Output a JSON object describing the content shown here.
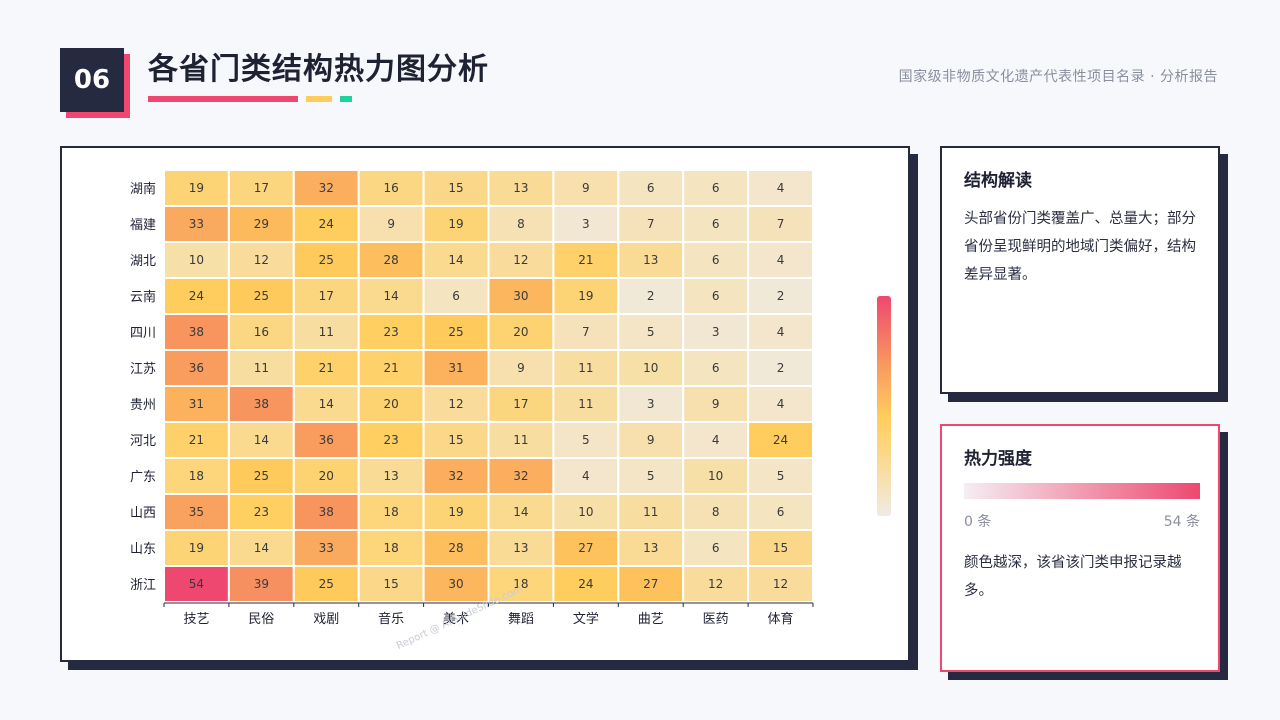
{
  "header": {
    "number": "06",
    "title": "各省门类结构热力图分析",
    "subtitle": "国家级非物质文化遗产代表性项目名录 · 分析报告"
  },
  "watermark": "Report @ AIGuideSlide.com",
  "panels": {
    "structure": {
      "title": "结构解读",
      "text": "头部省份门类覆盖广、总量大；部分省份呈现鲜明的地域门类偏好，结构差异显著。"
    },
    "intensity": {
      "title": "热力强度",
      "min_label": "0 条",
      "max_label": "54 条",
      "text": "颜色越深，该省该门类申报记录越多。"
    }
  },
  "colors": {
    "low": "#f0ebe6",
    "mid": "#ffcd5c",
    "high": "#ee4870",
    "dark": "#262a40",
    "pink": "#ee4870",
    "yellow": "#ffcd5c",
    "green": "#1fd19b"
  },
  "chart_data": {
    "type": "heatmap",
    "title": "",
    "xlabel": "",
    "ylabel": "",
    "x": [
      "技艺",
      "民俗",
      "戏剧",
      "音乐",
      "美术",
      "舞蹈",
      "文学",
      "曲艺",
      "医药",
      "体育"
    ],
    "y": [
      "湖南",
      "福建",
      "湖北",
      "云南",
      "四川",
      "江苏",
      "贵州",
      "河北",
      "广东",
      "山西",
      "山东",
      "浙江"
    ],
    "values": [
      [
        19,
        17,
        32,
        16,
        15,
        13,
        9,
        6,
        6,
        4
      ],
      [
        33,
        29,
        24,
        9,
        19,
        8,
        3,
        7,
        6,
        7
      ],
      [
        10,
        12,
        25,
        28,
        14,
        12,
        21,
        13,
        6,
        4
      ],
      [
        24,
        25,
        17,
        14,
        6,
        30,
        19,
        2,
        6,
        2
      ],
      [
        38,
        16,
        11,
        23,
        25,
        20,
        7,
        5,
        3,
        4
      ],
      [
        36,
        11,
        21,
        21,
        31,
        9,
        11,
        10,
        6,
        2
      ],
      [
        31,
        38,
        14,
        20,
        12,
        17,
        11,
        3,
        9,
        4
      ],
      [
        21,
        14,
        36,
        23,
        15,
        11,
        5,
        9,
        4,
        24
      ],
      [
        18,
        25,
        20,
        13,
        32,
        32,
        4,
        5,
        10,
        5
      ],
      [
        35,
        23,
        38,
        18,
        19,
        14,
        10,
        11,
        8,
        6
      ],
      [
        19,
        14,
        33,
        18,
        28,
        13,
        27,
        13,
        6,
        15
      ],
      [
        54,
        39,
        25,
        15,
        30,
        18,
        24,
        27,
        12,
        12
      ]
    ],
    "value_range": [
      0,
      54
    ],
    "colorbar": "vertical-right"
  }
}
